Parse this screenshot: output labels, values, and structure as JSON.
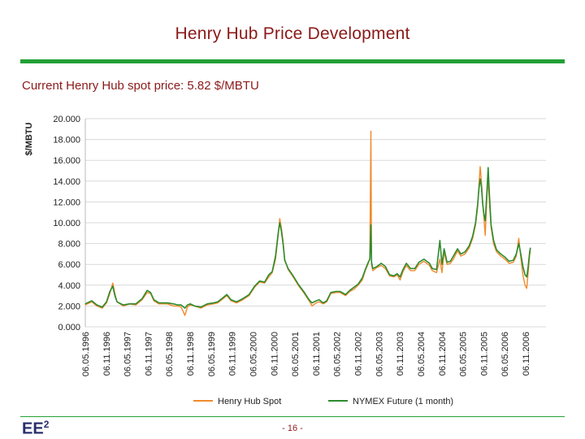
{
  "title": "Henry Hub Price Development",
  "subtitle": "Current Henry Hub spot price: 5.82 $/MBTU",
  "footer": {
    "logo_text": "EE",
    "logo_sup": "2",
    "page_number": "- 16 -"
  },
  "colors": {
    "title": "#8b1a1a",
    "rule": "#22a035",
    "spot": "#f08a2c",
    "nymex": "#2e8b2e",
    "grid": "#d9d9d9"
  },
  "chart_data": {
    "type": "line",
    "ylabel": "$/MBTU",
    "ylim": [
      0,
      20
    ],
    "yticks": [
      "0.000",
      "2.000",
      "4.000",
      "6.000",
      "8.000",
      "10.000",
      "12.000",
      "14.000",
      "16.000",
      "18.000",
      "20.000"
    ],
    "categories": [
      "06.05.1996",
      "06.11.1996",
      "06.05.1997",
      "06.11.1997",
      "06.05.1998",
      "06.11.1998",
      "06.05.1999",
      "06.11.1999",
      "06.05.2000",
      "06.11.2000",
      "06.05.2001",
      "06.11.2001",
      "06.05.2002",
      "06.11.2002",
      "06.05.2003",
      "06.11.2003",
      "06.05.2004",
      "06.11.2004",
      "06.05.2005",
      "06.11.2005",
      "06.05.2006",
      "06.11.2006"
    ],
    "grid": true,
    "legend_position": "bottom",
    "series": [
      {
        "name": "Henry Hub Spot",
        "color": "#f08a2c",
        "values": [
          [
            1996.34,
            2.1
          ],
          [
            1996.5,
            2.4
          ],
          [
            1996.62,
            2.0
          ],
          [
            1996.75,
            1.8
          ],
          [
            1996.85,
            2.3
          ],
          [
            1996.93,
            3.2
          ],
          [
            1997.0,
            4.2
          ],
          [
            1997.05,
            3.2
          ],
          [
            1997.1,
            2.4
          ],
          [
            1997.25,
            2.0
          ],
          [
            1997.4,
            2.2
          ],
          [
            1997.55,
            2.1
          ],
          [
            1997.7,
            2.6
          ],
          [
            1997.82,
            3.3
          ],
          [
            1997.9,
            3.2
          ],
          [
            1997.98,
            2.5
          ],
          [
            1998.1,
            2.2
          ],
          [
            1998.3,
            2.2
          ],
          [
            1998.45,
            2.0
          ],
          [
            1998.55,
            2.0
          ],
          [
            1998.63,
            1.9
          ],
          [
            1998.72,
            1.1
          ],
          [
            1998.78,
            1.9
          ],
          [
            1998.85,
            2.1
          ],
          [
            1998.95,
            2.0
          ],
          [
            1999.1,
            1.8
          ],
          [
            1999.25,
            2.1
          ],
          [
            1999.4,
            2.2
          ],
          [
            1999.5,
            2.3
          ],
          [
            1999.6,
            2.6
          ],
          [
            1999.72,
            3.0
          ],
          [
            1999.82,
            2.5
          ],
          [
            1999.95,
            2.3
          ],
          [
            2000.1,
            2.6
          ],
          [
            2000.25,
            3.0
          ],
          [
            2000.38,
            3.8
          ],
          [
            2000.5,
            4.3
          ],
          [
            2000.62,
            4.2
          ],
          [
            2000.72,
            4.8
          ],
          [
            2000.8,
            5.2
          ],
          [
            2000.88,
            6.5
          ],
          [
            2000.95,
            9.0
          ],
          [
            2000.98,
            10.4
          ],
          [
            2001.02,
            9.5
          ],
          [
            2001.06,
            8.2
          ],
          [
            2001.1,
            6.5
          ],
          [
            2001.18,
            5.5
          ],
          [
            2001.3,
            4.8
          ],
          [
            2001.42,
            4.0
          ],
          [
            2001.55,
            3.3
          ],
          [
            2001.68,
            2.5
          ],
          [
            2001.75,
            2.0
          ],
          [
            2001.85,
            2.3
          ],
          [
            2001.92,
            2.4
          ],
          [
            2002.02,
            2.2
          ],
          [
            2002.1,
            2.4
          ],
          [
            2002.2,
            3.2
          ],
          [
            2002.32,
            3.3
          ],
          [
            2002.42,
            3.3
          ],
          [
            2002.55,
            3.0
          ],
          [
            2002.65,
            3.4
          ],
          [
            2002.75,
            3.6
          ],
          [
            2002.85,
            4.0
          ],
          [
            2002.95,
            4.5
          ],
          [
            2003.02,
            5.4
          ],
          [
            2003.08,
            6.0
          ],
          [
            2003.13,
            6.6
          ],
          [
            2003.155,
            18.8
          ],
          [
            2003.17,
            6.0
          ],
          [
            2003.2,
            5.4
          ],
          [
            2003.3,
            5.7
          ],
          [
            2003.4,
            5.9
          ],
          [
            2003.5,
            5.6
          ],
          [
            2003.6,
            4.9
          ],
          [
            2003.7,
            4.8
          ],
          [
            2003.78,
            5.0
          ],
          [
            2003.85,
            4.5
          ],
          [
            2003.92,
            5.3
          ],
          [
            2004.0,
            5.9
          ],
          [
            2004.1,
            5.4
          ],
          [
            2004.2,
            5.4
          ],
          [
            2004.3,
            6.0
          ],
          [
            2004.42,
            6.3
          ],
          [
            2004.55,
            5.9
          ],
          [
            2004.62,
            5.4
          ],
          [
            2004.72,
            5.2
          ],
          [
            2004.8,
            6.5
          ],
          [
            2004.85,
            5.2
          ],
          [
            2004.9,
            7.2
          ],
          [
            2004.97,
            6.0
          ],
          [
            2005.05,
            6.1
          ],
          [
            2005.12,
            6.5
          ],
          [
            2005.22,
            7.3
          ],
          [
            2005.3,
            6.8
          ],
          [
            2005.4,
            7.0
          ],
          [
            2005.5,
            7.6
          ],
          [
            2005.58,
            8.5
          ],
          [
            2005.65,
            9.8
          ],
          [
            2005.7,
            11.5
          ],
          [
            2005.73,
            13.5
          ],
          [
            2005.76,
            15.4
          ],
          [
            2005.79,
            14.0
          ],
          [
            2005.82,
            12.0
          ],
          [
            2005.85,
            10.5
          ],
          [
            2005.88,
            8.8
          ],
          [
            2005.92,
            12.5
          ],
          [
            2005.95,
            14.2
          ],
          [
            2005.98,
            12.0
          ],
          [
            2006.02,
            9.6
          ],
          [
            2006.08,
            8.0
          ],
          [
            2006.15,
            7.2
          ],
          [
            2006.25,
            6.8
          ],
          [
            2006.35,
            6.5
          ],
          [
            2006.45,
            6.1
          ],
          [
            2006.55,
            6.2
          ],
          [
            2006.62,
            6.8
          ],
          [
            2006.68,
            8.5
          ],
          [
            2006.72,
            7.0
          ],
          [
            2006.78,
            5.0
          ],
          [
            2006.83,
            4.0
          ],
          [
            2006.87,
            3.7
          ],
          [
            2006.9,
            5.0
          ],
          [
            2006.94,
            6.9
          ],
          [
            2006.96,
            7.3
          ]
        ]
      },
      {
        "name": "NYMEX Future (1 month)",
        "color": "#2e8b2e",
        "values": [
          [
            1996.34,
            2.2
          ],
          [
            1996.5,
            2.5
          ],
          [
            1996.62,
            2.1
          ],
          [
            1996.75,
            1.9
          ],
          [
            1996.85,
            2.4
          ],
          [
            1996.93,
            3.4
          ],
          [
            1997.0,
            3.9
          ],
          [
            1997.05,
            3.0
          ],
          [
            1997.1,
            2.4
          ],
          [
            1997.25,
            2.1
          ],
          [
            1997.4,
            2.2
          ],
          [
            1997.55,
            2.2
          ],
          [
            1997.7,
            2.7
          ],
          [
            1997.82,
            3.5
          ],
          [
            1997.9,
            3.3
          ],
          [
            1997.98,
            2.6
          ],
          [
            1998.1,
            2.3
          ],
          [
            1998.3,
            2.3
          ],
          [
            1998.45,
            2.2
          ],
          [
            1998.55,
            2.1
          ],
          [
            1998.63,
            2.1
          ],
          [
            1998.72,
            1.8
          ],
          [
            1998.78,
            2.1
          ],
          [
            1998.85,
            2.2
          ],
          [
            1998.95,
            2.0
          ],
          [
            1999.1,
            1.9
          ],
          [
            1999.25,
            2.2
          ],
          [
            1999.4,
            2.3
          ],
          [
            1999.5,
            2.4
          ],
          [
            1999.6,
            2.7
          ],
          [
            1999.72,
            3.1
          ],
          [
            1999.82,
            2.6
          ],
          [
            1999.95,
            2.4
          ],
          [
            2000.1,
            2.7
          ],
          [
            2000.25,
            3.1
          ],
          [
            2000.38,
            3.9
          ],
          [
            2000.5,
            4.4
          ],
          [
            2000.62,
            4.3
          ],
          [
            2000.72,
            5.0
          ],
          [
            2000.8,
            5.3
          ],
          [
            2000.88,
            6.8
          ],
          [
            2000.95,
            9.2
          ],
          [
            2000.98,
            10.0
          ],
          [
            2001.02,
            9.2
          ],
          [
            2001.06,
            8.0
          ],
          [
            2001.1,
            6.4
          ],
          [
            2001.18,
            5.6
          ],
          [
            2001.3,
            4.9
          ],
          [
            2001.42,
            4.1
          ],
          [
            2001.55,
            3.4
          ],
          [
            2001.68,
            2.6
          ],
          [
            2001.75,
            2.3
          ],
          [
            2001.85,
            2.5
          ],
          [
            2001.92,
            2.6
          ],
          [
            2002.02,
            2.3
          ],
          [
            2002.1,
            2.5
          ],
          [
            2002.2,
            3.3
          ],
          [
            2002.32,
            3.4
          ],
          [
            2002.42,
            3.4
          ],
          [
            2002.55,
            3.1
          ],
          [
            2002.65,
            3.5
          ],
          [
            2002.75,
            3.8
          ],
          [
            2002.85,
            4.1
          ],
          [
            2002.95,
            4.7
          ],
          [
            2003.02,
            5.5
          ],
          [
            2003.08,
            6.1
          ],
          [
            2003.13,
            6.5
          ],
          [
            2003.155,
            9.8
          ],
          [
            2003.17,
            6.2
          ],
          [
            2003.2,
            5.6
          ],
          [
            2003.3,
            5.8
          ],
          [
            2003.4,
            6.1
          ],
          [
            2003.5,
            5.8
          ],
          [
            2003.6,
            5.0
          ],
          [
            2003.7,
            4.9
          ],
          [
            2003.78,
            5.1
          ],
          [
            2003.85,
            4.8
          ],
          [
            2003.92,
            5.5
          ],
          [
            2004.0,
            6.1
          ],
          [
            2004.1,
            5.6
          ],
          [
            2004.2,
            5.6
          ],
          [
            2004.3,
            6.2
          ],
          [
            2004.42,
            6.5
          ],
          [
            2004.55,
            6.1
          ],
          [
            2004.62,
            5.6
          ],
          [
            2004.72,
            5.5
          ],
          [
            2004.8,
            8.3
          ],
          [
            2004.85,
            6.0
          ],
          [
            2004.9,
            7.5
          ],
          [
            2004.97,
            6.2
          ],
          [
            2005.05,
            6.3
          ],
          [
            2005.12,
            6.8
          ],
          [
            2005.22,
            7.5
          ],
          [
            2005.3,
            7.0
          ],
          [
            2005.4,
            7.2
          ],
          [
            2005.5,
            7.8
          ],
          [
            2005.58,
            8.7
          ],
          [
            2005.65,
            10.0
          ],
          [
            2005.7,
            11.8
          ],
          [
            2005.73,
            13.2
          ],
          [
            2005.76,
            14.2
          ],
          [
            2005.79,
            13.5
          ],
          [
            2005.82,
            11.8
          ],
          [
            2005.85,
            10.8
          ],
          [
            2005.88,
            10.2
          ],
          [
            2005.92,
            13.0
          ],
          [
            2005.95,
            15.3
          ],
          [
            2005.98,
            12.8
          ],
          [
            2006.02,
            9.8
          ],
          [
            2006.08,
            8.3
          ],
          [
            2006.15,
            7.4
          ],
          [
            2006.25,
            7.0
          ],
          [
            2006.35,
            6.7
          ],
          [
            2006.45,
            6.3
          ],
          [
            2006.55,
            6.4
          ],
          [
            2006.62,
            7.0
          ],
          [
            2006.68,
            8.0
          ],
          [
            2006.72,
            7.2
          ],
          [
            2006.78,
            5.8
          ],
          [
            2006.83,
            5.0
          ],
          [
            2006.87,
            4.8
          ],
          [
            2006.9,
            5.6
          ],
          [
            2006.94,
            7.2
          ],
          [
            2006.96,
            7.6
          ]
        ]
      }
    ]
  }
}
